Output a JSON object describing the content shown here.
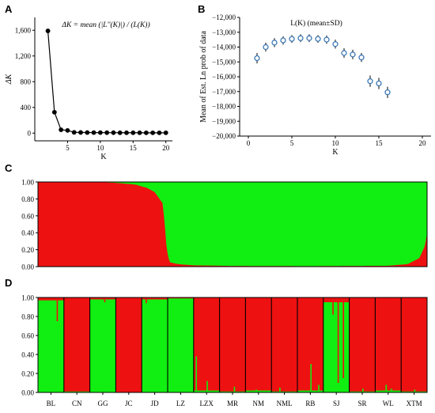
{
  "chart_data": [
    {
      "panel": "A",
      "type": "line",
      "title": "ΔK = mean (|L''(K)|) / (L(K))",
      "xlabel": "K",
      "ylabel": "ΔK",
      "xlim": [
        0,
        21
      ],
      "ylim": [
        -120,
        1800
      ],
      "x_ticks": [
        5,
        10,
        15,
        20
      ],
      "y_ticks": [
        0,
        400,
        800,
        1200,
        1600
      ],
      "y_tick_labels": [
        "0",
        "400",
        "800",
        "1,200",
        "1,600"
      ],
      "x": [
        2,
        3,
        4,
        5,
        6,
        7,
        8,
        9,
        10,
        11,
        12,
        13,
        14,
        15,
        16,
        17,
        18,
        19,
        20
      ],
      "values": [
        1590,
        325,
        52,
        42,
        12,
        10,
        9,
        8,
        8,
        7,
        7,
        6,
        6,
        6,
        6,
        5,
        5,
        5,
        5
      ],
      "grid": false,
      "marker_color": "#000000"
    },
    {
      "panel": "B",
      "type": "scatter",
      "title": "L(K) (mean±SD)",
      "xlabel": "K",
      "ylabel": "Mean of Est. Ln prob of data",
      "xlim": [
        -1,
        21
      ],
      "ylim": [
        -20000,
        -12000
      ],
      "x_ticks": [
        0,
        5,
        10,
        15,
        20
      ],
      "y_ticks": [
        -12000,
        -13000,
        -14000,
        -15000,
        -16000,
        -17000,
        -18000,
        -19000,
        -20000
      ],
      "y_tick_labels": [
        "−12,000",
        "−13,000",
        "−14,000",
        "−15,000",
        "−16,000",
        "−17,000",
        "−18,000",
        "−19,000",
        "−20,000"
      ],
      "x": [
        1,
        2,
        3,
        4,
        5,
        6,
        7,
        8,
        9,
        10,
        11,
        12,
        13,
        14,
        15,
        16
      ],
      "values": [
        -14750,
        -14000,
        -13700,
        -13550,
        -13450,
        -13400,
        -13400,
        -13450,
        -13500,
        -13800,
        -14400,
        -14500,
        -14700,
        -16300,
        -16450,
        -17050
      ],
      "sd": [
        350,
        300,
        300,
        280,
        260,
        260,
        260,
        260,
        280,
        300,
        320,
        320,
        300,
        380,
        380,
        380
      ],
      "grid": false,
      "marker_color": "#2f6fb0"
    },
    {
      "panel": "C",
      "type": "bar",
      "subtype": "stacked-membership (sorted)",
      "series": [
        {
          "color": "#ee1111"
        },
        {
          "color": "#11ee11"
        }
      ],
      "ylim": [
        0,
        1
      ],
      "y_ticks": [
        0,
        0.2,
        0.4,
        0.6,
        0.8,
        1
      ],
      "y_tick_labels": [
        "0.00",
        "0.20",
        "0.40",
        "0.60",
        "0.80",
        "1.00"
      ],
      "profile": [
        {
          "x": 0.0,
          "red": 1.0
        },
        {
          "x": 0.15,
          "red": 1.0
        },
        {
          "x": 0.2,
          "red": 0.99
        },
        {
          "x": 0.25,
          "red": 0.97
        },
        {
          "x": 0.28,
          "red": 0.93
        },
        {
          "x": 0.3,
          "red": 0.88
        },
        {
          "x": 0.32,
          "red": 0.75
        },
        {
          "x": 0.325,
          "red": 0.55
        },
        {
          "x": 0.33,
          "red": 0.25
        },
        {
          "x": 0.335,
          "red": 0.1
        },
        {
          "x": 0.34,
          "red": 0.05
        },
        {
          "x": 0.36,
          "red": 0.03
        },
        {
          "x": 0.4,
          "red": 0.015
        },
        {
          "x": 0.5,
          "red": 0.008
        },
        {
          "x": 0.7,
          "red": 0.006
        },
        {
          "x": 0.9,
          "red": 0.01
        },
        {
          "x": 0.95,
          "red": 0.03
        },
        {
          "x": 0.98,
          "red": 0.1
        },
        {
          "x": 0.995,
          "red": 0.25
        },
        {
          "x": 1.0,
          "red": 0.4
        }
      ]
    },
    {
      "panel": "D",
      "type": "bar",
      "subtype": "stacked-membership by population",
      "ylim": [
        0,
        1
      ],
      "y_ticks": [
        0,
        0.2,
        0.4,
        0.6,
        0.8,
        1
      ],
      "y_tick_labels": [
        "0.00",
        "0.20",
        "0.40",
        "0.60",
        "0.80",
        "1.00"
      ],
      "categories": [
        "BL",
        "CN",
        "GG",
        "JC",
        "JD",
        "LZ",
        "LZX",
        "MR",
        "NM",
        "NML",
        "RB",
        "SJ",
        "SR",
        "WL",
        "XTM"
      ],
      "dominant": [
        "green",
        "red",
        "green",
        "red",
        "green",
        "green",
        "red",
        "red",
        "red",
        "red",
        "red",
        "green",
        "red",
        "red",
        "red"
      ],
      "minor_fraction": [
        0.03,
        0.01,
        0.02,
        0.0,
        0.02,
        0.01,
        0.02,
        0.01,
        0.02,
        0.01,
        0.02,
        0.05,
        0.01,
        0.02,
        0.01
      ],
      "spikes": [
        {
          "pop": "BL",
          "at": 0.72,
          "value": 0.25
        },
        {
          "pop": "GG",
          "at": 0.55,
          "value": 0.05
        },
        {
          "pop": "JD",
          "at": 0.15,
          "value": 0.06
        },
        {
          "pop": "LZX",
          "at": 0.08,
          "value": 0.38
        },
        {
          "pop": "LZX",
          "at": 0.5,
          "value": 0.12
        },
        {
          "pop": "MR",
          "at": 0.55,
          "value": 0.06
        },
        {
          "pop": "NM",
          "at": 0.4,
          "value": 0.03
        },
        {
          "pop": "NML",
          "at": 0.3,
          "value": 0.05
        },
        {
          "pop": "RB",
          "at": 0.5,
          "value": 0.3
        },
        {
          "pop": "RB",
          "at": 0.8,
          "value": 0.08
        },
        {
          "pop": "SJ",
          "at": 0.35,
          "value": 0.18
        },
        {
          "pop": "SJ",
          "at": 0.55,
          "value": 0.9
        },
        {
          "pop": "SJ",
          "at": 0.75,
          "value": 0.85
        },
        {
          "pop": "SR",
          "at": 0.5,
          "value": 0.04
        },
        {
          "pop": "WL",
          "at": 0.4,
          "value": 0.08
        },
        {
          "pop": "WL",
          "at": 0.6,
          "value": 0.04
        },
        {
          "pop": "XTM",
          "at": 0.5,
          "value": 0.03
        }
      ],
      "colors": {
        "red": "#ee1111",
        "green": "#11ee11"
      }
    }
  ],
  "panels": {
    "a": "A",
    "b": "B",
    "c": "C",
    "d": "D"
  }
}
